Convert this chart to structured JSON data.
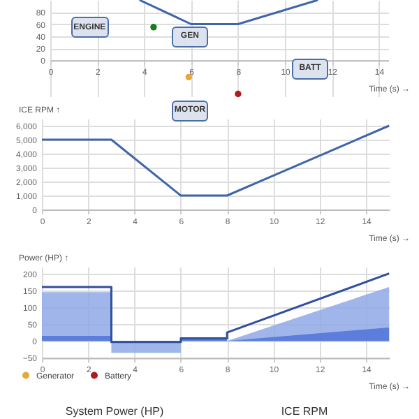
{
  "chart_data": [
    {
      "type": "line",
      "xlabel": "Time (s) →",
      "xlim": [
        0,
        14.4
      ],
      "xticks": [
        0,
        2,
        4,
        6,
        8,
        10,
        12,
        14
      ],
      "ylim": [
        -60,
        100
      ],
      "yticks": [
        0,
        20,
        40,
        60,
        80
      ],
      "grid": true,
      "legend": "bottom left",
      "series": [
        {
          "color": "#3f66a8",
          "x": [
            3.8,
            6,
            8,
            11.4
          ],
          "values": [
            100,
            60,
            60,
            100
          ]
        },
        {
          "type": "scatter",
          "color": "#1e7a1e",
          "x": [
            4.4
          ],
          "values": [
            55
          ]
        },
        {
          "type": "scatter",
          "name": "Generator",
          "color": "#e8a838",
          "x": [
            5.9
          ],
          "values": [
            -28
          ]
        },
        {
          "type": "scatter",
          "name": "Battery",
          "color": "#b01c1c",
          "x": [
            8
          ],
          "values": [
            -56
          ]
        }
      ],
      "annotations": [
        "ENGINE",
        "GEN",
        "BATT",
        "MOTOR"
      ]
    },
    {
      "type": "line",
      "ylabel": "ICE RPM ↑",
      "xlabel": "Time (s) →",
      "xlim": [
        0,
        15
      ],
      "xticks": [
        0,
        2,
        4,
        6,
        8,
        10,
        12,
        14
      ],
      "ylim": [
        0,
        6500
      ],
      "yticks": [
        0,
        {
          "value": 1000,
          "label": "1,000"
        },
        {
          "value": 2000,
          "label": "2,000"
        },
        {
          "value": 3000,
          "label": "3,000"
        },
        {
          "value": 4000,
          "label": "4,000"
        },
        {
          "value": 5000,
          "label": "5,000"
        },
        {
          "value": 6000,
          "label": "6,000"
        }
      ],
      "grid": true,
      "series": [
        {
          "color": "#3f66a8",
          "x": [
            0,
            3,
            6,
            8,
            15
          ],
          "values": [
            5000,
            5000,
            1000,
            1000,
            6000
          ]
        }
      ]
    },
    {
      "type": "area",
      "ylabel": "Power (HP) ↑",
      "xlabel": "Time (s) →",
      "xlim": [
        0,
        15
      ],
      "xticks": [
        0,
        2,
        4,
        6,
        8,
        10,
        12,
        14
      ],
      "ylim": [
        -50,
        220
      ],
      "yticks": [
        -50,
        0,
        50,
        100,
        150,
        200
      ],
      "grid": true,
      "series": [
        {
          "color": "#8fa9e6",
          "x": [
            0,
            3,
            3,
            6,
            6,
            8,
            8,
            15
          ],
          "values": [
            145,
            145,
            -35,
            -35,
            10,
            10,
            0,
            160
          ]
        },
        {
          "color": "#4f73d9",
          "x": [
            0,
            3,
            3,
            6,
            6,
            8,
            8,
            15
          ],
          "values": [
            15,
            15,
            -3,
            -3,
            5,
            5,
            0,
            40
          ]
        },
        {
          "type": "line",
          "color": "#2f4f9f",
          "x": [
            0,
            3,
            3,
            6,
            6,
            8,
            8,
            15
          ],
          "values": [
            160,
            160,
            -3,
            -3,
            8,
            8,
            25,
            200
          ]
        }
      ],
      "annotations": [
        "System Power (HP)",
        "ICE RPM"
      ]
    }
  ]
}
